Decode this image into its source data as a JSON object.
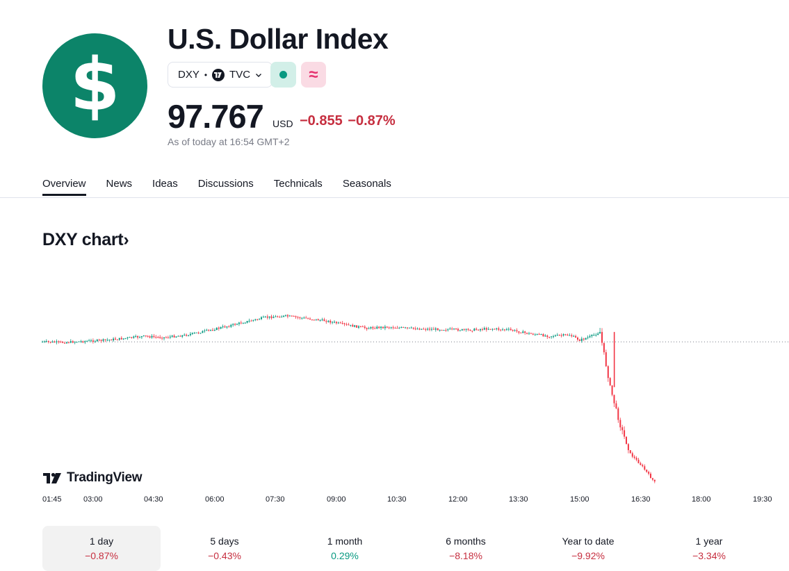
{
  "header": {
    "logo_symbol": "$",
    "logo_color": "#0c8469",
    "title": "U.S. Dollar Index",
    "ticker": "DXY",
    "separator": "•",
    "exchange": "TVC",
    "status_icon": "market-status-dot-icon",
    "approx_symbol": "≈",
    "price": "97.767",
    "currency": "USD",
    "change": "−0.855",
    "change_pct": "−0.87%",
    "as_of": "As of today at 16:54 GMT+2"
  },
  "tabs": [
    {
      "label": "Overview",
      "active": true
    },
    {
      "label": "News",
      "active": false
    },
    {
      "label": "Ideas",
      "active": false
    },
    {
      "label": "Discussions",
      "active": false
    },
    {
      "label": "Technicals",
      "active": false
    },
    {
      "label": "Seasonals",
      "active": false
    }
  ],
  "chart_section": {
    "title": "DXY chart",
    "arrow": "›",
    "brand": "TradingView"
  },
  "chart_data": {
    "type": "line",
    "x_ticks": [
      "01:45",
      "03:00",
      "04:30",
      "06:00",
      "07:30",
      "09:00",
      "10:30",
      "12:00",
      "13:30",
      "15:00",
      "16:30",
      "18:00",
      "19:30"
    ],
    "x": [
      "01:45",
      "02:15",
      "02:45",
      "03:15",
      "03:45",
      "04:15",
      "04:45",
      "05:15",
      "05:45",
      "06:15",
      "06:45",
      "07:15",
      "07:45",
      "08:15",
      "08:45",
      "09:15",
      "09:45",
      "10:15",
      "10:45",
      "11:15",
      "11:45",
      "12:15",
      "12:45",
      "13:15",
      "13:45",
      "14:15",
      "14:45",
      "15:00",
      "15:15",
      "15:30",
      "15:45",
      "16:00",
      "16:15",
      "16:30",
      "16:45",
      "16:54"
    ],
    "series": [
      {
        "values": [
          98.622,
          98.618,
          98.625,
          98.631,
          98.642,
          98.655,
          98.648,
          98.661,
          98.685,
          98.712,
          98.741,
          98.768,
          98.776,
          98.762,
          98.747,
          98.722,
          98.704,
          98.711,
          98.703,
          98.698,
          98.696,
          98.692,
          98.701,
          98.694,
          98.671,
          98.656,
          98.663,
          98.632,
          98.652,
          98.681,
          98.351,
          98.121,
          97.951,
          97.889,
          97.812,
          97.767
        ],
        "color_up": "#089981",
        "color_down": "#f23645"
      }
    ],
    "previous_close": 98.622,
    "y_range": [
      97.75,
      98.83
    ],
    "grid": false,
    "reference_line": "dotted previous close"
  },
  "periods": [
    {
      "label": "1 day",
      "value": "−0.87%",
      "sign": "neg",
      "active": true
    },
    {
      "label": "5 days",
      "value": "−0.43%",
      "sign": "neg",
      "active": false
    },
    {
      "label": "1 month",
      "value": "0.29%",
      "sign": "pos",
      "active": false
    },
    {
      "label": "6 months",
      "value": "−8.18%",
      "sign": "neg",
      "active": false
    },
    {
      "label": "Year to date",
      "value": "−9.92%",
      "sign": "neg",
      "active": false
    },
    {
      "label": "1 year",
      "value": "−3.34%",
      "sign": "neg",
      "active": false
    }
  ]
}
